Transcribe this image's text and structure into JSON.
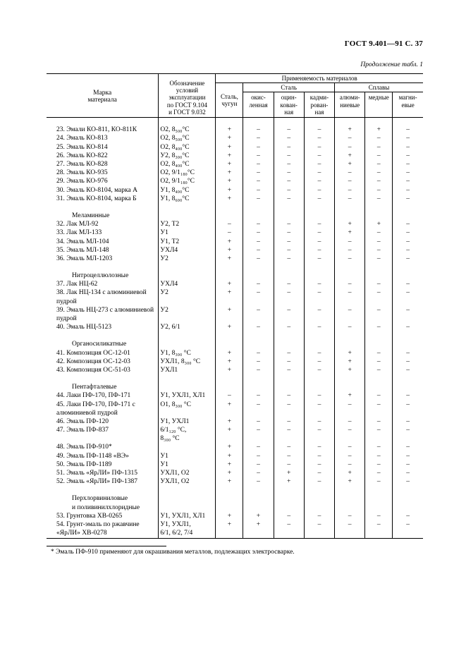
{
  "header": "ГОСТ 9.401—91 С. 37",
  "continuation": "Продолжение табл. 1",
  "columns": {
    "material": "Марка\nматериала",
    "designation": "Обозначение\nусловий\nэксплуатации\nпо ГОСТ 9.104\nи ГОСТ 9.032",
    "applicability": "Применяемость материалов",
    "steel_group": "Сталь",
    "alloy_group": "Сплавы",
    "cast": "Сталь,\nчугун",
    "sub": [
      "окис-\nленная",
      "оцин-\nкован-\nная",
      "кадми-\nрован-\nная",
      "алюми-\nниевые",
      "медные",
      "магни-\nевые"
    ]
  },
  "sections": [
    {
      "items": [
        {
          "n": "23. Эмали КО-811, КО-811К",
          "d": "О2,  8₅₀₀°С",
          "v": [
            "+",
            "–",
            "–",
            "–",
            "+",
            "+",
            "–"
          ]
        },
        {
          "n": "24. Эмаль КО-813",
          "d": "О2,  8₅₀₀°С",
          "v": [
            "+",
            "–",
            "–",
            "–",
            "–",
            "–",
            "–"
          ]
        },
        {
          "n": "25. Эмаль КО-814",
          "d": "О2,  8₄₀₀°С",
          "v": [
            "+",
            "–",
            "–",
            "–",
            "–",
            "–",
            "–"
          ]
        },
        {
          "n": "26. Эмаль КО-822",
          "d": "У2,  8₃₀₀°С",
          "v": [
            "+",
            "–",
            "–",
            "–",
            "+",
            "–",
            "–"
          ]
        },
        {
          "n": "27. Эмаль КО-828",
          "d": "О2,  8₄₀₀°С",
          "v": [
            "+",
            "–",
            "–",
            "–",
            "+",
            "–",
            "–"
          ]
        },
        {
          "n": "28. Эмаль КО-935",
          "d": "О2, 9/1₁₈₀°С",
          "v": [
            "+",
            "–",
            "–",
            "–",
            "–",
            "–",
            "–"
          ]
        },
        {
          "n": "29. Эмаль КО-976",
          "d": "О2, 9/1₁₈₀°С",
          "v": [
            "+",
            "–",
            "–",
            "–",
            "–",
            "–",
            "–"
          ]
        },
        {
          "n": "30. Эмаль КО-8104, марка А",
          "d": "У1,  8₄₀₀°С",
          "v": [
            "+",
            "–",
            "–",
            "–",
            "–",
            "–",
            "–"
          ]
        },
        {
          "n": "31. Эмаль КО-8104, марка Б",
          "d": "У1,  8₆₀₀°С",
          "v": [
            "+",
            "–",
            "–",
            "–",
            "–",
            "–",
            "–"
          ]
        }
      ]
    },
    {
      "title": "Меламинные",
      "items": [
        {
          "n": "32. Лак МЛ-92",
          "d": "У2,  Т2",
          "v": [
            "–",
            "–",
            "–",
            "–",
            "+",
            "+",
            "–"
          ]
        },
        {
          "n": "33. Лак МЛ-133",
          "d": "У1",
          "v": [
            "–",
            "–",
            "–",
            "–",
            "+",
            "–",
            "–"
          ]
        },
        {
          "n": "34. Эмаль МЛ-104",
          "d": "У1,  Т2",
          "v": [
            "+",
            "–",
            "–",
            "–",
            "–",
            "–",
            "–"
          ]
        },
        {
          "n": "35. Эмаль МЛ-148",
          "d": "УХЛ4",
          "v": [
            "+",
            "–",
            "–",
            "–",
            "–",
            "–",
            "–"
          ]
        },
        {
          "n": "36. Эмаль МЛ-1203",
          "d": "У2",
          "v": [
            "+",
            "–",
            "–",
            "–",
            "–",
            "–",
            "–"
          ]
        }
      ]
    },
    {
      "title": "Нитроцеллюлозные",
      "items": [
        {
          "n": "37. Лак НЦ-62",
          "d": "УХЛ4",
          "v": [
            "+",
            "–",
            "–",
            "–",
            "–",
            "–",
            "–"
          ]
        },
        {
          "n": "38. Лак НЦ-134 с алюминиевой пудрой",
          "d": "У2",
          "v": [
            "+",
            "–",
            "–",
            "–",
            "–",
            "–",
            "–"
          ]
        },
        {
          "n": "39. Эмаль НЦ-273 с алюминиевой пудрой",
          "d": "У2",
          "v": [
            "+",
            "–",
            "–",
            "–",
            "–",
            "–",
            "–"
          ]
        },
        {
          "n": "40. Эмаль НЦ-5123",
          "d": "У2,  6/1",
          "v": [
            "+",
            "–",
            "–",
            "–",
            "–",
            "–",
            "–"
          ]
        }
      ]
    },
    {
      "title": "Органосиликатные",
      "items": [
        {
          "n": "41. Композиция ОС-12-01",
          "d": "У1,  8₃₀₀ °С",
          "v": [
            "+",
            "–",
            "–",
            "–",
            "+",
            "–",
            "–"
          ]
        },
        {
          "n": "42. Композиция ОС-12-03",
          "d": "УХЛ1,  8₃₀₀ °С",
          "v": [
            "+",
            "–",
            "–",
            "–",
            "+",
            "–",
            "–"
          ]
        },
        {
          "n": "43. Композиция ОС-51-03",
          "d": "УХЛ1",
          "v": [
            "+",
            "–",
            "–",
            "–",
            "+",
            "–",
            "–"
          ]
        }
      ]
    },
    {
      "title": "Пентафталевые",
      "items": [
        {
          "n": "44. Лаки ПФ-170, ПФ-171",
          "d": "У1,  УХЛ1, ХЛ1",
          "v": [
            "–",
            "–",
            "–",
            "–",
            "+",
            "–",
            "–"
          ]
        },
        {
          "n": "45. Лаки ПФ-170, ПФ-171 с алюминиевой пудрой",
          "d": "О1,  8₃₀₀ °С",
          "v": [
            "+",
            "–",
            "–",
            "–",
            "–",
            "–",
            "–"
          ]
        },
        {
          "n": "46. Эмаль ПФ-120",
          "d": "У1,  УХЛ1",
          "v": [
            "+",
            "–",
            "–",
            "–",
            "–",
            "–",
            "–"
          ]
        },
        {
          "n": "47. Эмаль ПФ-837",
          "d": "6/1₁₂₀ °С, 8₃₀₀ °С",
          "v": [
            "+",
            "–",
            "–",
            "–",
            "–",
            "–",
            "–"
          ]
        },
        {
          "n": "48. Эмаль ПФ-910*",
          "d": "",
          "v": [
            "+",
            "–",
            "–",
            "–",
            "–",
            "–",
            "–"
          ]
        },
        {
          "n": "49. Эмаль ПФ-1148 «ВЭ»",
          "d": "У1",
          "v": [
            "+",
            "–",
            "–",
            "–",
            "–",
            "–",
            "–"
          ]
        },
        {
          "n": "50. Эмаль ПФ-1189",
          "d": "У1",
          "v": [
            "+",
            "–",
            "–",
            "–",
            "–",
            "–",
            "–"
          ]
        },
        {
          "n": "51. Эмаль «ЯрЛИ» ПФ-1315",
          "d": "УХЛ1,  О2",
          "v": [
            "+",
            "–",
            "+",
            "–",
            "+",
            "–",
            "–"
          ]
        },
        {
          "n": "52. Эмаль «ЯрЛИ» ПФ-1387",
          "d": "УХЛ1,  О2",
          "v": [
            "+",
            "–",
            "+",
            "–",
            "+",
            "–",
            "–"
          ]
        }
      ]
    },
    {
      "title": "Перхлорвиниловые и поливинилхлоридные",
      "items": [
        {
          "n": "53. Грунтовка ХВ-0265",
          "d": "У1,  УХЛ1, ХЛ1",
          "v": [
            "+",
            "+",
            "–",
            "–",
            "–",
            "–",
            "–"
          ]
        },
        {
          "n": "54. Грунт-эмаль по ржавчине «ЯрЛИ» ХВ-0278",
          "d": "У1,  УХЛ1, 6/1, 6/2, 7/4",
          "v": [
            "+",
            "+",
            "–",
            "–",
            "–",
            "–",
            "–"
          ]
        }
      ]
    }
  ],
  "footnote": "* Эмаль ПФ-910 применяют для окрашивания металлов, подлежащих электросварке."
}
